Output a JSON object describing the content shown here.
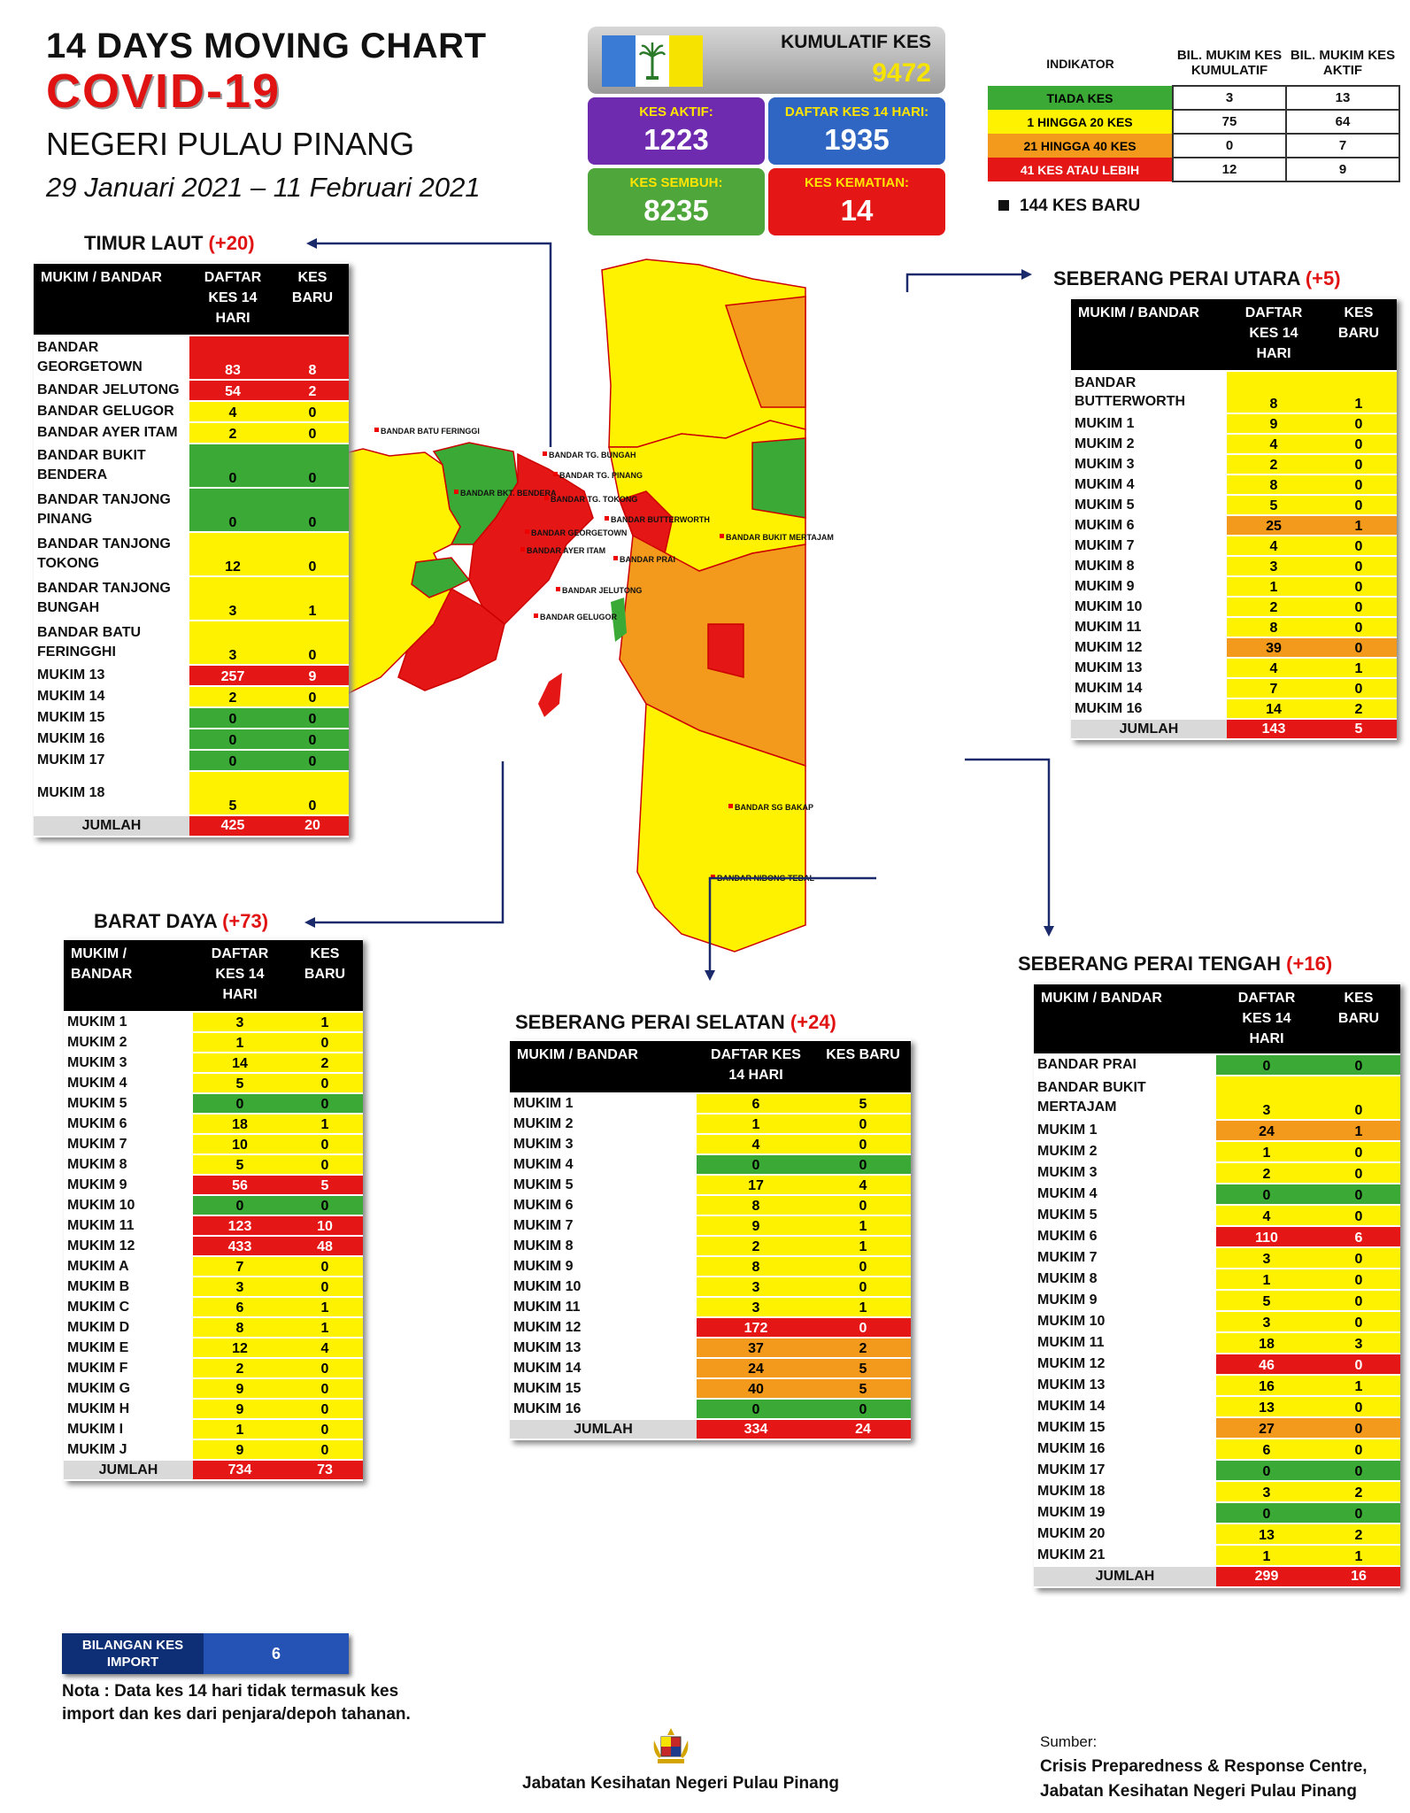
{
  "header": {
    "line1": "14  DAYS MOVING CHART",
    "line2": "COVID-19",
    "line3": "NEGERI PULAU PINANG",
    "line4": "29 Januari 2021 – 11 Februari 2021"
  },
  "kpi": {
    "kumulatif_label": "KUMULATIF KES",
    "kumulatif_value": "9472",
    "aktif_label": "KES AKTIF:",
    "aktif_value": "1223",
    "daftar_label": "DAFTAR KES 14 HARI:",
    "daftar_value": "1935",
    "sembuh_label": "KES SEMBUH:",
    "sembuh_value": "8235",
    "kematian_label": "KES KEMATIAN:",
    "kematian_value": "14"
  },
  "indicator": {
    "h_indikator": "INDIKATOR",
    "h_kumulatif": "BIL. MUKIM KES KUMULATIF",
    "h_aktif": "BIL. MUKIM KES AKTIF",
    "rows": [
      {
        "label": "TIADA KES",
        "kumulatif": "3",
        "aktif": "13",
        "color": "#3aa935"
      },
      {
        "label": "1 HINGGA 20 KES",
        "kumulatif": "75",
        "aktif": "64",
        "color": "#fff200"
      },
      {
        "label": "21 HINGGA 40 KES",
        "kumulatif": "0",
        "aktif": "7",
        "color": "#f39a1d"
      },
      {
        "label": "41 KES ATAU LEBIH",
        "kumulatif": "12",
        "aktif": "9",
        "color": "#e51616"
      }
    ],
    "baru": "144 KES BARU"
  },
  "flag_colors": [
    "#3a7bd5",
    "#ffffff",
    "#f6e400"
  ],
  "tables": {
    "timur_laut": {
      "title": "TIMUR LAUT",
      "inc": "(+20)",
      "h1": "MUKIM / BANDAR",
      "h2": "DAFTAR KES 14 HARI",
      "h3": "KES BARU",
      "rows": [
        {
          "name": "BANDAR GEORGETOWN",
          "a": "83",
          "b": "8",
          "ca": "red",
          "cb": "red",
          "h": 2
        },
        {
          "name": "BANDAR JELUTONG",
          "a": "54",
          "b": "2",
          "ca": "red",
          "cb": "red",
          "h": 1
        },
        {
          "name": "BANDAR GELUGOR",
          "a": "4",
          "b": "0",
          "ca": "yellow",
          "cb": "yellow",
          "h": 1
        },
        {
          "name": "BANDAR AYER ITAM",
          "a": "2",
          "b": "0",
          "ca": "yellow",
          "cb": "yellow",
          "h": 1
        },
        {
          "name": "BANDAR BUKIT BENDERA",
          "a": "0",
          "b": "0",
          "ca": "green",
          "cb": "green",
          "h": 2
        },
        {
          "name": "BANDAR TANJONG PINANG",
          "a": "0",
          "b": "0",
          "ca": "green",
          "cb": "green",
          "h": 2
        },
        {
          "name": "BANDAR TANJONG TOKONG",
          "a": "12",
          "b": "0",
          "ca": "yellow",
          "cb": "yellow",
          "h": 2
        },
        {
          "name": "BANDAR TANJONG BUNGAH",
          "a": "3",
          "b": "1",
          "ca": "yellow",
          "cb": "yellow",
          "h": 2
        },
        {
          "name": "BANDAR BATU FERINGGHI",
          "a": "3",
          "b": "0",
          "ca": "yellow",
          "cb": "yellow",
          "h": 2
        },
        {
          "name": "MUKIM 13",
          "a": "257",
          "b": "9",
          "ca": "red",
          "cb": "red",
          "h": 1
        },
        {
          "name": "MUKIM 14",
          "a": "2",
          "b": "0",
          "ca": "yellow",
          "cb": "yellow",
          "h": 1
        },
        {
          "name": "MUKIM 15",
          "a": "0",
          "b": "0",
          "ca": "green",
          "cb": "green",
          "h": 1
        },
        {
          "name": "MUKIM 16",
          "a": "0",
          "b": "0",
          "ca": "green",
          "cb": "green",
          "h": 1
        },
        {
          "name": "MUKIM 17",
          "a": "0",
          "b": "0",
          "ca": "green",
          "cb": "green",
          "h": 1
        },
        {
          "name": "MUKIM 18",
          "a": "5",
          "b": "0",
          "ca": "yellow",
          "cb": "yellow",
          "h": 2
        }
      ],
      "total": {
        "name": "JUMLAH",
        "a": "425",
        "b": "20"
      }
    },
    "barat_daya": {
      "title": "BARAT DAYA",
      "inc": "(+73)",
      "h1": "MUKIM / BANDAR",
      "h2": "DAFTAR KES 14 HARI",
      "h3": "KES BARU",
      "rows": [
        {
          "name": "MUKIM 1",
          "a": "3",
          "b": "1",
          "ca": "yellow",
          "cb": "yellow",
          "h": 1
        },
        {
          "name": "MUKIM 2",
          "a": "1",
          "b": "0",
          "ca": "yellow",
          "cb": "yellow",
          "h": 1
        },
        {
          "name": "MUKIM 3",
          "a": "14",
          "b": "2",
          "ca": "yellow",
          "cb": "yellow",
          "h": 1
        },
        {
          "name": "MUKIM 4",
          "a": "5",
          "b": "0",
          "ca": "yellow",
          "cb": "yellow",
          "h": 1
        },
        {
          "name": "MUKIM 5",
          "a": "0",
          "b": "0",
          "ca": "green",
          "cb": "green",
          "h": 1
        },
        {
          "name": "MUKIM 6",
          "a": "18",
          "b": "1",
          "ca": "yellow",
          "cb": "yellow",
          "h": 1
        },
        {
          "name": "MUKIM 7",
          "a": "10",
          "b": "0",
          "ca": "yellow",
          "cb": "yellow",
          "h": 1
        },
        {
          "name": "MUKIM 8",
          "a": "5",
          "b": "0",
          "ca": "yellow",
          "cb": "yellow",
          "h": 1
        },
        {
          "name": "MUKIM 9",
          "a": "56",
          "b": "5",
          "ca": "red",
          "cb": "red",
          "h": 1
        },
        {
          "name": "MUKIM 10",
          "a": "0",
          "b": "0",
          "ca": "green",
          "cb": "green",
          "h": 1
        },
        {
          "name": "MUKIM 11",
          "a": "123",
          "b": "10",
          "ca": "red",
          "cb": "red",
          "h": 1
        },
        {
          "name": "MUKIM 12",
          "a": "433",
          "b": "48",
          "ca": "red",
          "cb": "red",
          "h": 1
        },
        {
          "name": "MUKIM A",
          "a": "7",
          "b": "0",
          "ca": "yellow",
          "cb": "yellow",
          "h": 1
        },
        {
          "name": "MUKIM B",
          "a": "3",
          "b": "0",
          "ca": "yellow",
          "cb": "yellow",
          "h": 1
        },
        {
          "name": "MUKIM C",
          "a": "6",
          "b": "1",
          "ca": "yellow",
          "cb": "yellow",
          "h": 1
        },
        {
          "name": "MUKIM D",
          "a": "8",
          "b": "1",
          "ca": "yellow",
          "cb": "yellow",
          "h": 1
        },
        {
          "name": "MUKIM E",
          "a": "12",
          "b": "4",
          "ca": "yellow",
          "cb": "yellow",
          "h": 1
        },
        {
          "name": "MUKIM F",
          "a": "2",
          "b": "0",
          "ca": "yellow",
          "cb": "yellow",
          "h": 1
        },
        {
          "name": "MUKIM G",
          "a": "9",
          "b": "0",
          "ca": "yellow",
          "cb": "yellow",
          "h": 1
        },
        {
          "name": "MUKIM H",
          "a": "9",
          "b": "0",
          "ca": "yellow",
          "cb": "yellow",
          "h": 1
        },
        {
          "name": "MUKIM I",
          "a": "1",
          "b": "0",
          "ca": "yellow",
          "cb": "yellow",
          "h": 1
        },
        {
          "name": "MUKIM J",
          "a": "9",
          "b": "0",
          "ca": "yellow",
          "cb": "yellow",
          "h": 1
        }
      ],
      "total": {
        "name": "JUMLAH",
        "a": "734",
        "b": "73"
      }
    },
    "sp_utara": {
      "title": "SEBERANG PERAI UTARA",
      "inc": "(+5)",
      "h1": "MUKIM / BANDAR",
      "h2": "DAFTAR KES 14 HARI",
      "h3": "KES BARU",
      "rows": [
        {
          "name": "BANDAR BUTTERWORTH",
          "a": "8",
          "b": "1",
          "ca": "yellow",
          "cb": "yellow",
          "h": 2
        },
        {
          "name": "MUKIM 1",
          "a": "9",
          "b": "0",
          "ca": "yellow",
          "cb": "yellow",
          "h": 1
        },
        {
          "name": "MUKIM 2",
          "a": "4",
          "b": "0",
          "ca": "yellow",
          "cb": "yellow",
          "h": 1
        },
        {
          "name": "MUKIM 3",
          "a": "2",
          "b": "0",
          "ca": "yellow",
          "cb": "yellow",
          "h": 1
        },
        {
          "name": "MUKIM 4",
          "a": "8",
          "b": "0",
          "ca": "yellow",
          "cb": "yellow",
          "h": 1
        },
        {
          "name": "MUKIM 5",
          "a": "5",
          "b": "0",
          "ca": "yellow",
          "cb": "yellow",
          "h": 1
        },
        {
          "name": "MUKIM 6",
          "a": "25",
          "b": "1",
          "ca": "orange",
          "cb": "orange",
          "h": 1
        },
        {
          "name": "MUKIM 7",
          "a": "4",
          "b": "0",
          "ca": "yellow",
          "cb": "yellow",
          "h": 1
        },
        {
          "name": "MUKIM 8",
          "a": "3",
          "b": "0",
          "ca": "yellow",
          "cb": "yellow",
          "h": 1
        },
        {
          "name": "MUKIM 9",
          "a": "1",
          "b": "0",
          "ca": "yellow",
          "cb": "yellow",
          "h": 1
        },
        {
          "name": "MUKIM 10",
          "a": "2",
          "b": "0",
          "ca": "yellow",
          "cb": "yellow",
          "h": 1
        },
        {
          "name": "MUKIM 11",
          "a": "8",
          "b": "0",
          "ca": "yellow",
          "cb": "yellow",
          "h": 1
        },
        {
          "name": "MUKIM 12",
          "a": "39",
          "b": "0",
          "ca": "orange",
          "cb": "orange",
          "h": 1
        },
        {
          "name": "MUKIM 13",
          "a": "4",
          "b": "1",
          "ca": "yellow",
          "cb": "yellow",
          "h": 1
        },
        {
          "name": "MUKIM 14",
          "a": "7",
          "b": "0",
          "ca": "yellow",
          "cb": "yellow",
          "h": 1
        },
        {
          "name": "MUKIM 16",
          "a": "14",
          "b": "2",
          "ca": "yellow",
          "cb": "yellow",
          "h": 1
        }
      ],
      "total": {
        "name": "JUMLAH",
        "a": "143",
        "b": "5"
      }
    },
    "sp_selatan": {
      "title": "SEBERANG PERAI SELATAN",
      "inc": "(+24)",
      "h1": "MUKIM / BANDAR",
      "h2": "DAFTAR KES 14 HARI",
      "h3": "KES BARU",
      "rows": [
        {
          "name": "MUKIM 1",
          "a": "6",
          "b": "5",
          "ca": "yellow",
          "cb": "yellow",
          "h": 1
        },
        {
          "name": "MUKIM 2",
          "a": "1",
          "b": "0",
          "ca": "yellow",
          "cb": "yellow",
          "h": 1
        },
        {
          "name": "MUKIM 3",
          "a": "4",
          "b": "0",
          "ca": "yellow",
          "cb": "yellow",
          "h": 1
        },
        {
          "name": "MUKIM 4",
          "a": "0",
          "b": "0",
          "ca": "green",
          "cb": "green",
          "h": 1
        },
        {
          "name": "MUKIM 5",
          "a": "17",
          "b": "4",
          "ca": "yellow",
          "cb": "yellow",
          "h": 1
        },
        {
          "name": "MUKIM 6",
          "a": "8",
          "b": "0",
          "ca": "yellow",
          "cb": "yellow",
          "h": 1
        },
        {
          "name": "MUKIM 7",
          "a": "9",
          "b": "1",
          "ca": "yellow",
          "cb": "yellow",
          "h": 1
        },
        {
          "name": "MUKIM 8",
          "a": "2",
          "b": "1",
          "ca": "yellow",
          "cb": "yellow",
          "h": 1
        },
        {
          "name": "MUKIM 9",
          "a": "8",
          "b": "0",
          "ca": "yellow",
          "cb": "yellow",
          "h": 1
        },
        {
          "name": "MUKIM 10",
          "a": "3",
          "b": "0",
          "ca": "yellow",
          "cb": "yellow",
          "h": 1
        },
        {
          "name": "MUKIM 11",
          "a": "3",
          "b": "1",
          "ca": "yellow",
          "cb": "yellow",
          "h": 1
        },
        {
          "name": "MUKIM 12",
          "a": "172",
          "b": "0",
          "ca": "red",
          "cb": "red",
          "h": 1
        },
        {
          "name": "MUKIM 13",
          "a": "37",
          "b": "2",
          "ca": "orange",
          "cb": "orange",
          "h": 1
        },
        {
          "name": "MUKIM 14",
          "a": "24",
          "b": "5",
          "ca": "orange",
          "cb": "orange",
          "h": 1
        },
        {
          "name": "MUKIM 15",
          "a": "40",
          "b": "5",
          "ca": "orange",
          "cb": "orange",
          "h": 1
        },
        {
          "name": "MUKIM 16",
          "a": "0",
          "b": "0",
          "ca": "green",
          "cb": "green",
          "h": 1
        }
      ],
      "total": {
        "name": "JUMLAH",
        "a": "334",
        "b": "24"
      }
    },
    "sp_tengah": {
      "title": "SEBERANG PERAI TENGAH",
      "inc": "(+16)",
      "h1": "MUKIM / BANDAR",
      "h2": "DAFTAR KES 14 HARI",
      "h3": "KES BARU",
      "rows": [
        {
          "name": "BANDAR PRAI",
          "a": "0",
          "b": "0",
          "ca": "green",
          "cb": "green",
          "h": 1
        },
        {
          "name": "BANDAR BUKIT MERTAJAM",
          "a": "3",
          "b": "0",
          "ca": "yellow",
          "cb": "yellow",
          "h": 2
        },
        {
          "name": "MUKIM 1",
          "a": "24",
          "b": "1",
          "ca": "orange",
          "cb": "orange",
          "h": 1
        },
        {
          "name": "MUKIM 2",
          "a": "1",
          "b": "0",
          "ca": "yellow",
          "cb": "yellow",
          "h": 1
        },
        {
          "name": "MUKIM 3",
          "a": "2",
          "b": "0",
          "ca": "yellow",
          "cb": "yellow",
          "h": 1
        },
        {
          "name": "MUKIM 4",
          "a": "0",
          "b": "0",
          "ca": "green",
          "cb": "green",
          "h": 1
        },
        {
          "name": "MUKIM 5",
          "a": "4",
          "b": "0",
          "ca": "yellow",
          "cb": "yellow",
          "h": 1
        },
        {
          "name": "MUKIM 6",
          "a": "110",
          "b": "6",
          "ca": "red",
          "cb": "red",
          "h": 1
        },
        {
          "name": "MUKIM 7",
          "a": "3",
          "b": "0",
          "ca": "yellow",
          "cb": "yellow",
          "h": 1
        },
        {
          "name": "MUKIM 8",
          "a": "1",
          "b": "0",
          "ca": "yellow",
          "cb": "yellow",
          "h": 1
        },
        {
          "name": "MUKIM 9",
          "a": "5",
          "b": "0",
          "ca": "yellow",
          "cb": "yellow",
          "h": 1
        },
        {
          "name": "MUKIM 10",
          "a": "3",
          "b": "0",
          "ca": "yellow",
          "cb": "yellow",
          "h": 1
        },
        {
          "name": "MUKIM 11",
          "a": "18",
          "b": "3",
          "ca": "yellow",
          "cb": "yellow",
          "h": 1
        },
        {
          "name": "MUKIM 12",
          "a": "46",
          "b": "0",
          "ca": "red",
          "cb": "red",
          "h": 1
        },
        {
          "name": "MUKIM 13",
          "a": "16",
          "b": "1",
          "ca": "yellow",
          "cb": "yellow",
          "h": 1
        },
        {
          "name": "MUKIM 14",
          "a": "13",
          "b": "0",
          "ca": "yellow",
          "cb": "yellow",
          "h": 1
        },
        {
          "name": "MUKIM 15",
          "a": "27",
          "b": "0",
          "ca": "orange",
          "cb": "orange",
          "h": 1
        },
        {
          "name": "MUKIM 16",
          "a": "6",
          "b": "0",
          "ca": "yellow",
          "cb": "yellow",
          "h": 1
        },
        {
          "name": "MUKIM 17",
          "a": "0",
          "b": "0",
          "ca": "green",
          "cb": "green",
          "h": 1
        },
        {
          "name": "MUKIM 18",
          "a": "3",
          "b": "2",
          "ca": "yellow",
          "cb": "yellow",
          "h": 1
        },
        {
          "name": "MUKIM 19",
          "a": "0",
          "b": "0",
          "ca": "green",
          "cb": "green",
          "h": 1
        },
        {
          "name": "MUKIM 20",
          "a": "13",
          "b": "2",
          "ca": "yellow",
          "cb": "yellow",
          "h": 1
        },
        {
          "name": "MUKIM 21",
          "a": "1",
          "b": "1",
          "ca": "yellow",
          "cb": "yellow",
          "h": 1
        }
      ],
      "total": {
        "name": "JUMLAH",
        "a": "299",
        "b": "16"
      }
    }
  },
  "map_labels": [
    "BANDAR BATU FERINGGI",
    "BANDAR TG. BUNGAH",
    "BANDAR TG. PINANG",
    "BANDAR TG. TOKONG",
    "BANDAR BKT. BENDERA",
    "BANDAR GEORGETOWN",
    "BANDAR AYER ITAM",
    "BANDAR JELUTONG",
    "BANDAR GELUGOR",
    "BANDAR BUTTERWORTH",
    "BANDAR PRAI",
    "BANDAR BUKIT MERTAJAM",
    "BANDAR SG BAKAP",
    "BANDAR NIBONG TEBAL"
  ],
  "import": {
    "label": "BILANGAN KES IMPORT",
    "value": "6"
  },
  "nota": "Nota : Data kes 14 hari tidak termasuk kes import dan kes dari penjara/depoh tahanan.",
  "footer": "Jabatan Kesihatan Negeri Pulau Pinang",
  "sumber_label": "Sumber:",
  "sumber_1": "Crisis Preparedness & Response Centre,",
  "sumber_2": "Jabatan Kesihatan Negeri Pulau Pinang"
}
